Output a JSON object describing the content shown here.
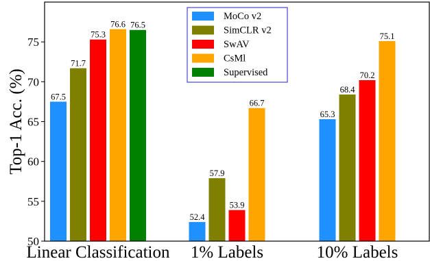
{
  "chart_data": {
    "type": "bar",
    "title": "",
    "xlabel": "",
    "ylabel": "Top-1 Acc. (%)",
    "ylim": [
      50,
      80
    ],
    "yticks": [
      50,
      55,
      60,
      65,
      70,
      75
    ],
    "grid": false,
    "legend_position": "top-center",
    "categories": [
      "Linear Classification",
      "1% Labels",
      "10% Labels"
    ],
    "series": [
      {
        "name": "MoCo v2",
        "color": "#1E90FF",
        "values": [
          67.5,
          52.4,
          65.3
        ]
      },
      {
        "name": "SimCLR v2",
        "color": "#808000",
        "values": [
          71.7,
          57.9,
          68.4
        ]
      },
      {
        "name": "SwAV",
        "color": "#FF0000",
        "values": [
          75.3,
          53.9,
          70.2
        ]
      },
      {
        "name": "CsMl",
        "color": "#FFA500",
        "values": [
          76.6,
          66.7,
          75.1
        ]
      },
      {
        "name": "Supervised",
        "color": "#008000",
        "values": [
          76.5,
          null,
          null
        ]
      }
    ]
  }
}
